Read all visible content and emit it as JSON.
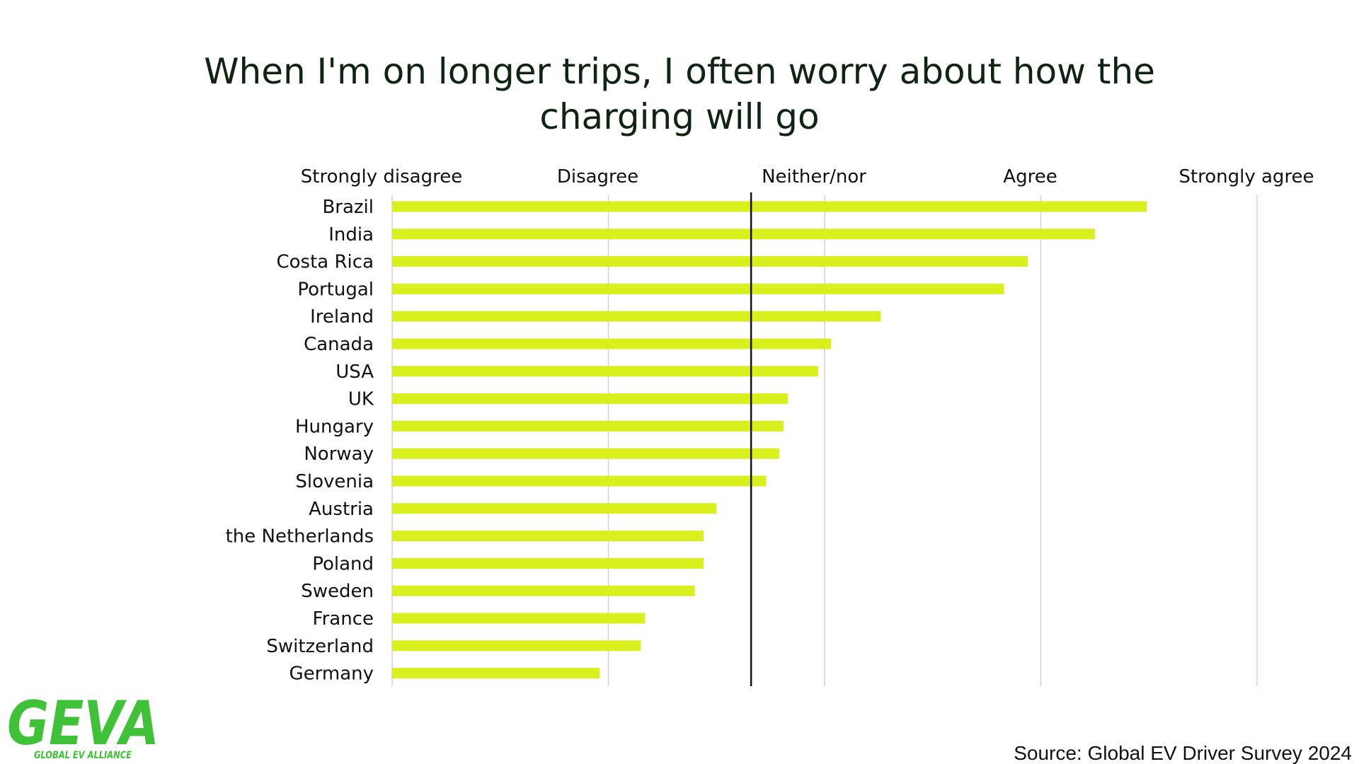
{
  "chart_data": {
    "type": "bar",
    "orientation": "horizontal",
    "title_lines": [
      "When I'm on longer trips, I often worry about how the",
      "charging will go"
    ],
    "scale_labels": [
      "Strongly disagree",
      "Disagree",
      "Neither/nor",
      "Agree",
      "Strongly agree"
    ],
    "xlim": [
      1,
      5
    ],
    "reference_line": 2.66,
    "categories": [
      "Brazil",
      "India",
      "Costa Rica",
      "Portugal",
      "Ireland",
      "Canada",
      "USA",
      "UK",
      "Hungary",
      "Norway",
      "Slovenia",
      "Austria",
      "the Netherlands",
      "Poland",
      "Sweden",
      "France",
      "Switzerland",
      "Germany"
    ],
    "values": [
      4.49,
      4.25,
      3.94,
      3.83,
      3.26,
      3.03,
      2.97,
      2.83,
      2.81,
      2.79,
      2.73,
      2.5,
      2.44,
      2.44,
      2.4,
      2.17,
      2.15,
      1.96
    ],
    "bar_color": "#d8f01e",
    "grid": true
  },
  "logo": {
    "text": "GEVA",
    "subtitle": "GLOBAL EV ALLIANCE",
    "color": "#3fc238",
    "accent_color": "#d8f01e"
  },
  "source": "Source: Global EV Driver Survey 2024"
}
